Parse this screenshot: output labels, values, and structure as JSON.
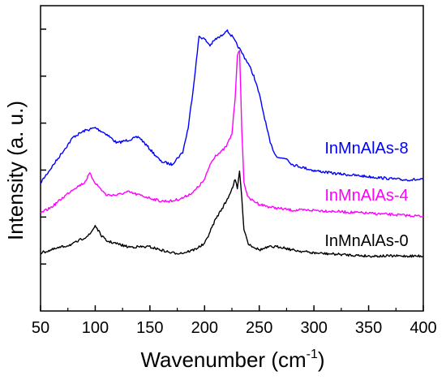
{
  "chart_data": {
    "type": "line",
    "xlabel_main": "Wavenumber (cm",
    "xlabel_sup": "-1",
    "xlabel_close": ")",
    "ylabel": "Intensity (a. u.)",
    "xlim": [
      50,
      400
    ],
    "ylim": [
      0,
      1
    ],
    "xticks": [
      50,
      100,
      150,
      200,
      250,
      300,
      350,
      400
    ],
    "yticks_count": 6,
    "series": [
      {
        "name": "InMnAlAs-8",
        "color": "#0000ff",
        "x": [
          50,
          60,
          70,
          80,
          90,
          100,
          110,
          120,
          130,
          140,
          150,
          160,
          170,
          180,
          185,
          190,
          195,
          200,
          205,
          210,
          215,
          220,
          225,
          230,
          235,
          240,
          245,
          250,
          255,
          260,
          265,
          270,
          275,
          280,
          290,
          300,
          320,
          350,
          380,
          400
        ],
        "y": [
          0.42,
          0.47,
          0.52,
          0.57,
          0.59,
          0.6,
          0.58,
          0.55,
          0.56,
          0.57,
          0.53,
          0.49,
          0.48,
          0.52,
          0.6,
          0.74,
          0.9,
          0.89,
          0.87,
          0.89,
          0.9,
          0.92,
          0.9,
          0.87,
          0.84,
          0.81,
          0.77,
          0.71,
          0.63,
          0.55,
          0.51,
          0.5,
          0.5,
          0.48,
          0.47,
          0.46,
          0.45,
          0.44,
          0.43,
          0.43
        ],
        "label": "InMnAlAs-8"
      },
      {
        "name": "InMnAlAs-4",
        "color": "#ff00ff",
        "x": [
          50,
          60,
          70,
          80,
          90,
          95,
          100,
          110,
          120,
          130,
          140,
          150,
          160,
          170,
          180,
          190,
          200,
          205,
          210,
          215,
          220,
          225,
          228,
          230,
          232,
          234,
          236,
          240,
          250,
          260,
          280,
          300,
          350,
          400
        ],
        "y": [
          0.32,
          0.34,
          0.37,
          0.4,
          0.42,
          0.45,
          0.42,
          0.38,
          0.38,
          0.39,
          0.38,
          0.37,
          0.36,
          0.36,
          0.37,
          0.39,
          0.43,
          0.48,
          0.51,
          0.52,
          0.54,
          0.58,
          0.7,
          0.84,
          0.85,
          0.6,
          0.42,
          0.37,
          0.35,
          0.34,
          0.33,
          0.33,
          0.32,
          0.31
        ],
        "label": "InMnAlAs-4"
      },
      {
        "name": "InMnAlAs-0",
        "color": "#000000",
        "x": [
          50,
          60,
          70,
          80,
          90,
          95,
          100,
          105,
          110,
          120,
          130,
          140,
          150,
          160,
          170,
          180,
          190,
          200,
          205,
          210,
          215,
          220,
          225,
          228,
          230,
          232,
          234,
          236,
          240,
          250,
          260,
          270,
          280,
          300,
          350,
          400
        ],
        "y": [
          0.19,
          0.2,
          0.21,
          0.22,
          0.24,
          0.25,
          0.28,
          0.25,
          0.23,
          0.22,
          0.21,
          0.21,
          0.21,
          0.2,
          0.19,
          0.19,
          0.2,
          0.22,
          0.26,
          0.3,
          0.33,
          0.36,
          0.4,
          0.43,
          0.4,
          0.46,
          0.37,
          0.27,
          0.22,
          0.2,
          0.21,
          0.21,
          0.2,
          0.19,
          0.18,
          0.18
        ],
        "label": "InMnAlAs-0"
      }
    ]
  }
}
